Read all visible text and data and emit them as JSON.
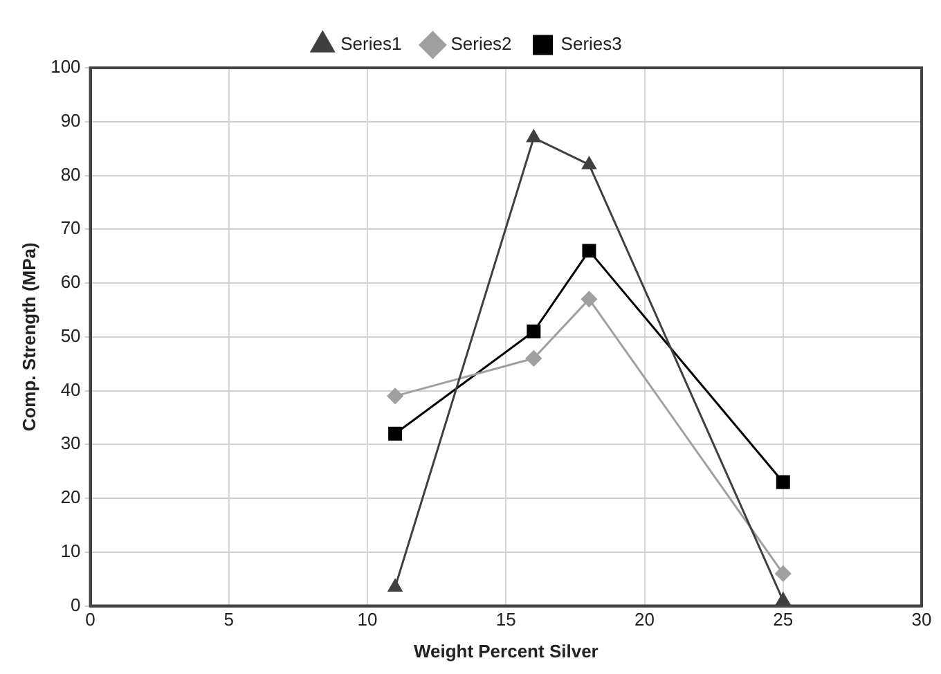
{
  "chart_data": {
    "type": "line",
    "xlabel": "Weight Percent Silver",
    "ylabel": "Comp. Strength (MPa)",
    "xlim": [
      0,
      30
    ],
    "xticks": [
      0,
      5,
      10,
      15,
      20,
      25,
      30
    ],
    "ylim": [
      0,
      100
    ],
    "yticks": [
      0,
      10,
      20,
      30,
      40,
      50,
      60,
      70,
      80,
      90,
      100
    ],
    "grid": true,
    "legend": "top",
    "line_style": "solid",
    "series": [
      {
        "name": "Series1",
        "color": "#404040",
        "marker": "triangle",
        "x": [
          11,
          16,
          18,
          25
        ],
        "values": [
          3.5,
          87,
          82,
          1
        ]
      },
      {
        "name": "Series2",
        "color": "#a0a0a0",
        "marker": "diamond",
        "x": [
          11,
          16,
          18,
          25
        ],
        "values": [
          39,
          46,
          57,
          6
        ]
      },
      {
        "name": "Series3",
        "color": "#000000",
        "marker": "square",
        "x": [
          11,
          16,
          18,
          25
        ],
        "values": [
          32,
          51,
          66,
          23
        ]
      }
    ]
  }
}
